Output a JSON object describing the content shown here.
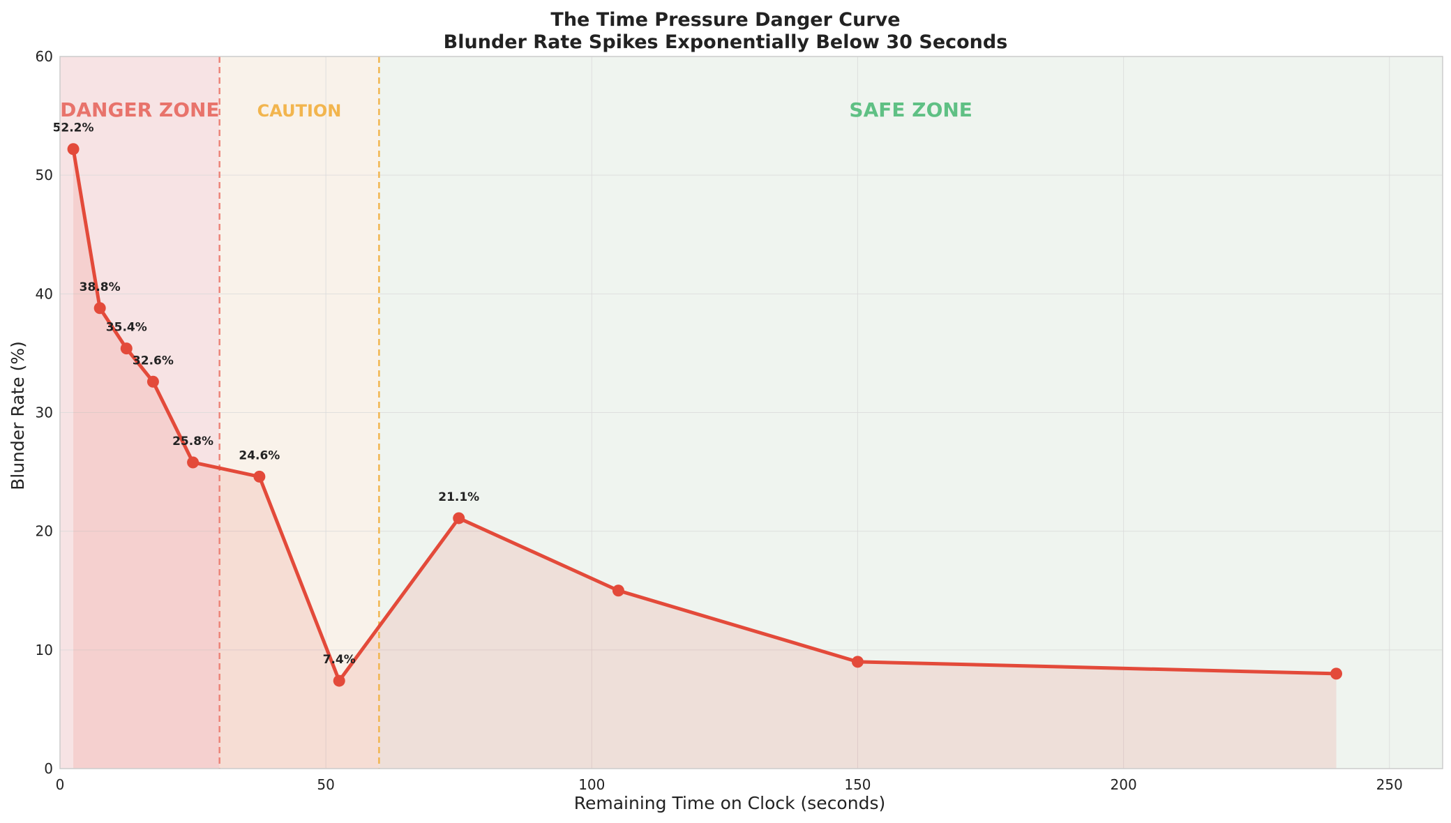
{
  "chart_data": {
    "type": "line",
    "title": "The Time Pressure Danger Curve",
    "subtitle": "Blunder Rate Spikes Exponentially Below 30 Seconds",
    "xlabel": "Remaining Time on Clock (seconds)",
    "ylabel": "Blunder Rate (%)",
    "xlim": [
      0,
      260
    ],
    "ylim": [
      0,
      60
    ],
    "xticks": [
      0,
      50,
      100,
      150,
      200,
      250
    ],
    "yticks": [
      0,
      10,
      20,
      30,
      40,
      50,
      60
    ],
    "grid": true,
    "series": [
      {
        "color": "#e34a3a",
        "x": [
          2.5,
          7.5,
          12.5,
          17.5,
          25,
          37.5,
          52.5,
          75,
          105,
          150,
          240
        ],
        "y": [
          52.2,
          38.8,
          35.4,
          32.6,
          25.8,
          24.6,
          7.4,
          21.1,
          15.0,
          9.0,
          8.0
        ],
        "labels": [
          "52.2%",
          "38.8%",
          "35.4%",
          "32.6%",
          "25.8%",
          "24.6%",
          "7.4%",
          "21.1%",
          "",
          "",
          ""
        ]
      }
    ],
    "zones": [
      {
        "label": "DANGER ZONE",
        "x_start": 0,
        "x_end": 30,
        "color": "#e8736b",
        "fill": "#f7e3e4"
      },
      {
        "label": "CAUTION",
        "x_start": 30,
        "x_end": 60,
        "color": "#f2b54e",
        "fill": "#f9f2ea"
      },
      {
        "label": "SAFE ZONE",
        "x_start": 60,
        "x_end": 260,
        "color": "#5fc084",
        "fill": "#eff4ef"
      }
    ],
    "thresholds": [
      {
        "x": 30,
        "color": "#ec8479"
      },
      {
        "x": 60,
        "color": "#f2b54e"
      }
    ]
  }
}
